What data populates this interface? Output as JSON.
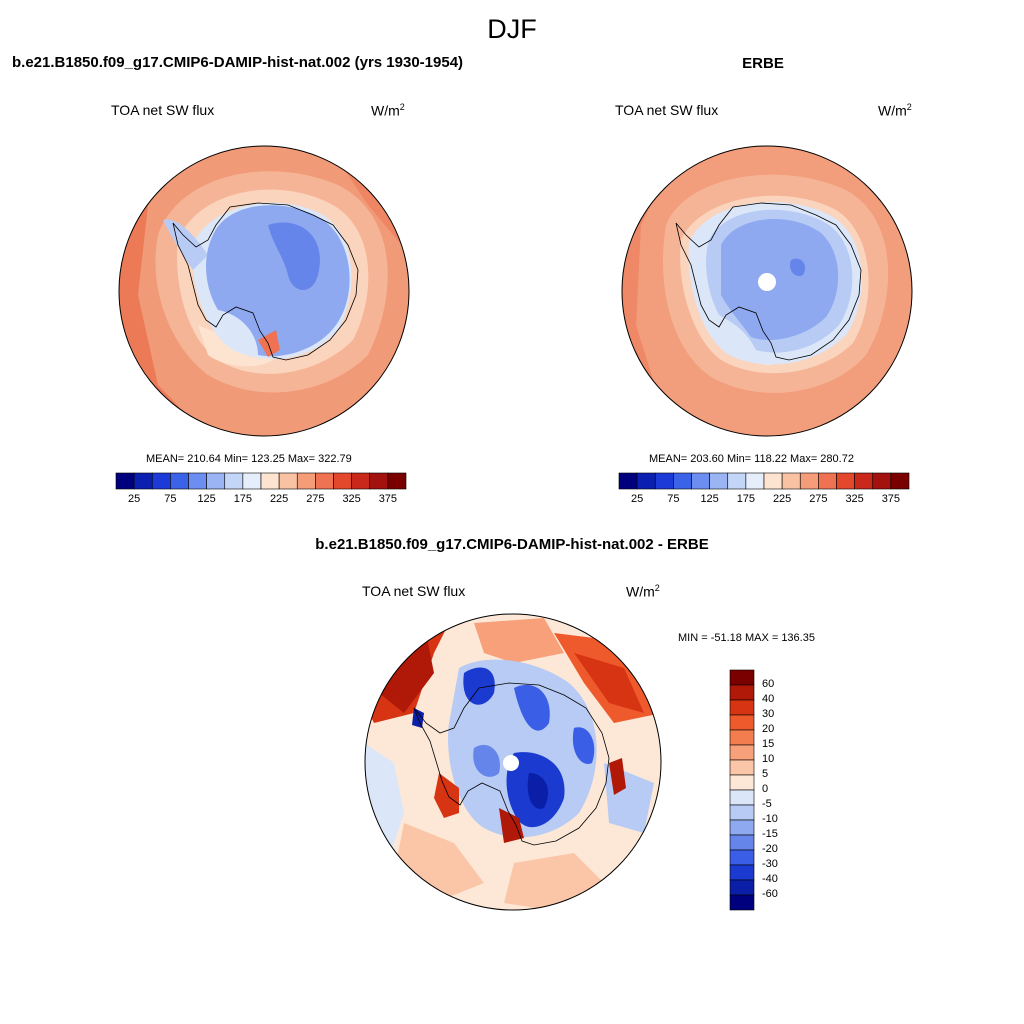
{
  "main_title": "DJF",
  "panels": {
    "model": {
      "title": "b.e21.B1850.f09_g17.CMIP6-DAMIP-hist-nat.002 (yrs 1930-1954)",
      "variable": "TOA net SW flux",
      "units_base": "W/m",
      "units_exp": "2",
      "stats": "MEAN= 210.64  Min= 123.25  Max= 322.79"
    },
    "obs": {
      "title": "ERBE",
      "variable": "TOA net SW flux",
      "units_base": "W/m",
      "units_exp": "2",
      "stats": "MEAN= 203.60  Min= 118.22  Max= 280.72"
    },
    "diff": {
      "title": "b.e21.B1850.f09_g17.CMIP6-DAMIP-hist-nat.002 - ERBE",
      "variable": "TOA net SW flux",
      "units_base": "W/m",
      "units_exp": "2",
      "stats": "MIN = -51.18 MAX = 136.35"
    }
  },
  "chart_data": [
    {
      "type": "heatmap",
      "title": "b.e21.B1850.f09_g17.CMIP6-DAMIP-hist-nat.002 (yrs 1930-1954)",
      "projection": "south polar stereographic",
      "mean": 210.64,
      "min": 123.25,
      "max": 322.79,
      "colorbar_ticks": [
        "25",
        "75",
        "125",
        "175",
        "225",
        "275",
        "325",
        "375"
      ],
      "colorbar_colors": [
        "#00007f",
        "#0b1fb0",
        "#1c3ad8",
        "#3a63e8",
        "#6b8ef0",
        "#9ab4f4",
        "#c4d6f8",
        "#e6eefc",
        "#fde4d0",
        "#f9c2a3",
        "#f59c79",
        "#ef7352",
        "#e3482c",
        "#c9281a",
        "#a3120e",
        "#7a0000"
      ],
      "levels": [
        0,
        25,
        50,
        75,
        100,
        125,
        150,
        175,
        200,
        225,
        250,
        275,
        300,
        325,
        350,
        375
      ]
    },
    {
      "type": "heatmap",
      "title": "ERBE",
      "projection": "south polar stereographic",
      "mean": 203.6,
      "min": 118.22,
      "max": 280.72,
      "colorbar_ticks": [
        "25",
        "75",
        "125",
        "175",
        "225",
        "275",
        "325",
        "375"
      ],
      "colorbar_colors": [
        "#00007f",
        "#0b1fb0",
        "#1c3ad8",
        "#3a63e8",
        "#6b8ef0",
        "#9ab4f4",
        "#c4d6f8",
        "#e6eefc",
        "#fde4d0",
        "#f9c2a3",
        "#f59c79",
        "#ef7352",
        "#e3482c",
        "#c9281a",
        "#a3120e",
        "#7a0000"
      ],
      "levels": [
        0,
        25,
        50,
        75,
        100,
        125,
        150,
        175,
        200,
        225,
        250,
        275,
        300,
        325,
        350,
        375
      ]
    },
    {
      "type": "heatmap",
      "title": "b.e21.B1850.f09_g17.CMIP6-DAMIP-hist-nat.002 - ERBE",
      "projection": "south polar stereographic",
      "min": -51.18,
      "max": 136.35,
      "colorbar_ticks": [
        "60",
        "40",
        "30",
        "20",
        "15",
        "10",
        "5",
        "0",
        "-5",
        "-10",
        "-15",
        "-20",
        "-30",
        "-40",
        "-60"
      ],
      "colorbar_colors": [
        "#7a0000",
        "#b01808",
        "#d63413",
        "#ef5a2c",
        "#f47d4f",
        "#f7a079",
        "#fbc6a8",
        "#fde8d8",
        "#dbe6f8",
        "#b8cbf5",
        "#8ea9f0",
        "#6585ea",
        "#3a5ee6",
        "#1b3ad0",
        "#0a1ea8",
        "#00007f"
      ]
    }
  ]
}
